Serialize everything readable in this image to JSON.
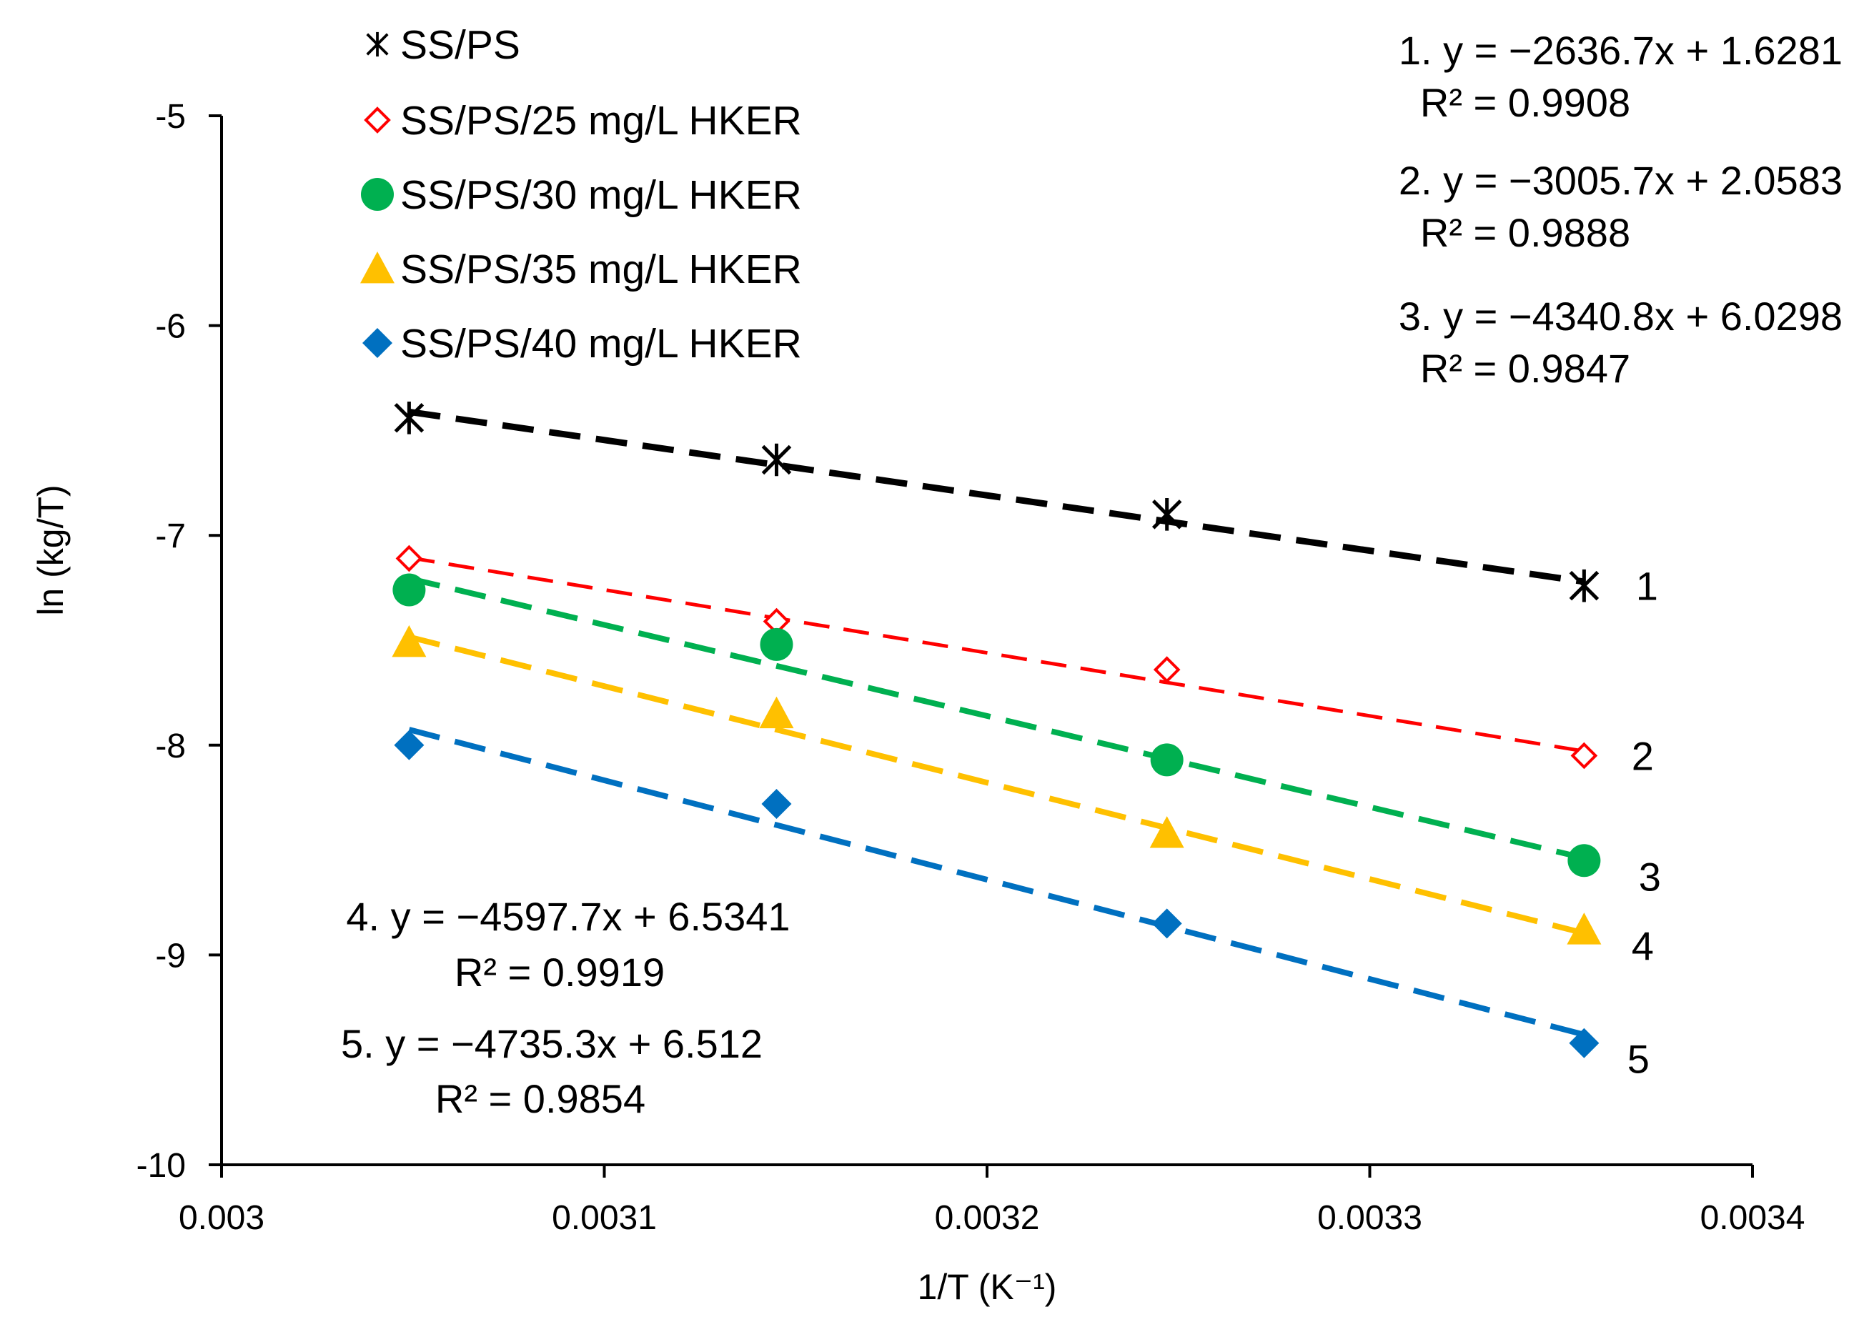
{
  "chart_data": {
    "type": "scatter",
    "xlabel": "1/T (K⁻¹)",
    "ylabel": "ln (kg/T)",
    "xlim": [
      0.003,
      0.0034
    ],
    "ylim": [
      -10,
      -5
    ],
    "x_ticks": [
      "0.003",
      "0.0031",
      "0.0032",
      "0.0033",
      "0.0034"
    ],
    "y_ticks": [
      "-5",
      "-6",
      "-7",
      "-8",
      "-9",
      "-10"
    ],
    "x_tick_values": [
      0.003,
      0.0031,
      0.0032,
      0.0033,
      0.0034
    ],
    "y_tick_values": [
      -5,
      -6,
      -7,
      -8,
      -9,
      -10
    ],
    "grid": false,
    "legend_position": "top-left",
    "x": [
      0.003049,
      0.003145,
      0.003247,
      0.003356
    ],
    "series": [
      {
        "name": "SS/PS",
        "marker": "asterisk",
        "color": "#000000",
        "values": [
          -6.44,
          -6.64,
          -6.9,
          -7.24
        ],
        "trend": {
          "slope": -2636.7,
          "intercept": 1.6281
        },
        "number": "1",
        "equation": "1. y = −2636.7x + 1.6281",
        "r2": "R² = 0.9908"
      },
      {
        "name": "SS/PS/25 mg/L HKER",
        "marker": "diamond-open",
        "color": "#ff0000",
        "values": [
          -7.11,
          -7.41,
          -7.64,
          -8.05
        ],
        "trend": {
          "slope": -3005.7,
          "intercept": 2.0583
        },
        "number": "2",
        "equation": "2. y = −3005.7x + 2.0583",
        "r2": "R² = 0.9888"
      },
      {
        "name": "SS/PS/30 mg/L HKER",
        "marker": "circle",
        "color": "#00b050",
        "values": [
          -7.26,
          -7.52,
          -8.07,
          -8.55
        ],
        "trend": {
          "slope": -4340.8,
          "intercept": 6.0298
        },
        "number": "3",
        "equation": "3. y = −4340.8x + 6.0298",
        "r2": "R² = 0.9847"
      },
      {
        "name": "SS/PS/35 mg/L HKER",
        "marker": "triangle",
        "color": "#ffc000",
        "values": [
          -7.51,
          -7.85,
          -8.42,
          -8.88
        ],
        "trend": {
          "slope": -4597.7,
          "intercept": 6.5341
        },
        "number": "4",
        "equation": "4. y = −4597.7x + 6.5341",
        "r2": "R² = 0.9919"
      },
      {
        "name": "SS/PS/40 mg/L HKER",
        "marker": "diamond",
        "color": "#0070c0",
        "values": [
          -8.0,
          -8.28,
          -8.85,
          -9.42
        ],
        "trend": {
          "slope": -4735.3,
          "intercept": 6.512
        },
        "number": "5",
        "equation": "5. y = −4735.3x + 6.512",
        "r2": "R² = 0.9854"
      }
    ]
  }
}
